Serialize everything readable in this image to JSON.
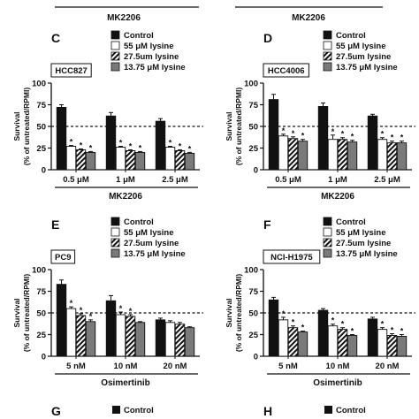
{
  "top_fragment": {
    "labels": [
      "MK2206",
      "MK2206"
    ]
  },
  "legend": [
    {
      "label": "Control",
      "pattern": "black"
    },
    {
      "label": "55 μM lysine",
      "pattern": "white"
    },
    {
      "label": "27.5um lysine",
      "pattern": "hatch"
    },
    {
      "label": "13.75 μM lysine",
      "pattern": "gray"
    }
  ],
  "bottom_fragment": {
    "letters": [
      "G",
      "H"
    ],
    "legend_label": "Control"
  },
  "chart_data": [
    {
      "type": "bar",
      "panel": "C",
      "cell_line": "HCC827",
      "categories": [
        "0.5 μM",
        "1 μM",
        "2.5 μM"
      ],
      "xlabel": "MK2206",
      "ylabel": "Survival\n(% of untreated/RPMI)",
      "ylim": [
        0,
        100
      ],
      "yticks": [
        "0",
        "25",
        "50",
        "75",
        "100"
      ],
      "reference_line": 50,
      "series": [
        {
          "name": "Control",
          "values": [
            72,
            62,
            56
          ],
          "errors": [
            3,
            4,
            3
          ]
        },
        {
          "name": "55 μM lysine",
          "values": [
            27,
            26,
            26
          ],
          "errors": [
            1,
            1,
            1
          ],
          "star": true
        },
        {
          "name": "27.5um lysine",
          "values": [
            23,
            22,
            22
          ],
          "errors": [
            1,
            1,
            1
          ],
          "star": true
        },
        {
          "name": "13.75 μM lysine",
          "values": [
            20,
            20,
            19
          ],
          "errors": [
            1,
            1,
            1
          ],
          "star": true
        }
      ]
    },
    {
      "type": "bar",
      "panel": "D",
      "cell_line": "HCC4006",
      "categories": [
        "0.5 μM",
        "1 μM",
        "2.5 μM"
      ],
      "xlabel": "MK2206",
      "ylabel": "Survival\n(% of untreated/RPMI)",
      "ylim": [
        0,
        100
      ],
      "yticks": [
        "0",
        "25",
        "50",
        "75",
        "100"
      ],
      "reference_line": 50,
      "series": [
        {
          "name": "Control",
          "values": [
            81,
            73,
            62
          ],
          "errors": [
            6,
            4,
            2
          ]
        },
        {
          "name": "55 μM lysine",
          "values": [
            39,
            35,
            35
          ],
          "errors": [
            2,
            5,
            2
          ],
          "star": true
        },
        {
          "name": "27.5um lysine",
          "values": [
            36,
            35,
            31
          ],
          "errors": [
            2,
            2,
            2
          ],
          "star": true
        },
        {
          "name": "13.75 μM lysine",
          "values": [
            33,
            32,
            31
          ],
          "errors": [
            2,
            2,
            2
          ],
          "star": true
        }
      ]
    },
    {
      "type": "bar",
      "panel": "E",
      "cell_line": "PC9",
      "categories": [
        "5 nM",
        "10 nM",
        "20 nM"
      ],
      "xlabel": "Osimertinib",
      "ylabel": "Survival\n(% of untreated/RPMI)",
      "ylim": [
        0,
        100
      ],
      "yticks": [
        "0",
        "25",
        "50",
        "75",
        "100"
      ],
      "reference_line": 50,
      "series": [
        {
          "name": "Control",
          "values": [
            83,
            64,
            42
          ],
          "errors": [
            5,
            6,
            2
          ]
        },
        {
          "name": "55 μM lysine",
          "values": [
            55,
            48,
            39
          ],
          "errors": [
            2,
            3,
            2
          ],
          "star": [
            true,
            true,
            false
          ]
        },
        {
          "name": "27.5um lysine",
          "values": [
            47,
            46,
            37
          ],
          "errors": [
            2,
            2,
            2
          ],
          "star": [
            true,
            true,
            false
          ]
        },
        {
          "name": "13.75 μM lysine",
          "values": [
            40,
            39,
            33
          ],
          "errors": [
            2,
            1,
            1
          ],
          "star": [
            true,
            false,
            false
          ]
        }
      ]
    },
    {
      "type": "bar",
      "panel": "F",
      "cell_line": "NCI-H1975",
      "categories": [
        "5 nM",
        "10 nM",
        "20 nM"
      ],
      "xlabel": "Osimertinib",
      "ylabel": "Survival\n(% of untreated/RPMI)",
      "ylim": [
        0,
        100
      ],
      "yticks": [
        "0",
        "25",
        "50",
        "75",
        "100"
      ],
      "reference_line": 50,
      "series": [
        {
          "name": "Control",
          "values": [
            65,
            53,
            43
          ],
          "errors": [
            3,
            2,
            2
          ]
        },
        {
          "name": "55 μM lysine",
          "values": [
            42,
            35,
            31
          ],
          "errors": [
            3,
            2,
            2
          ],
          "star": true
        },
        {
          "name": "27.5um lysine",
          "values": [
            33,
            31,
            24
          ],
          "errors": [
            2,
            2,
            2
          ],
          "star": true
        },
        {
          "name": "13.75 μM lysine",
          "values": [
            28,
            24,
            23
          ],
          "errors": [
            1,
            1,
            2
          ],
          "star": true
        }
      ]
    }
  ]
}
